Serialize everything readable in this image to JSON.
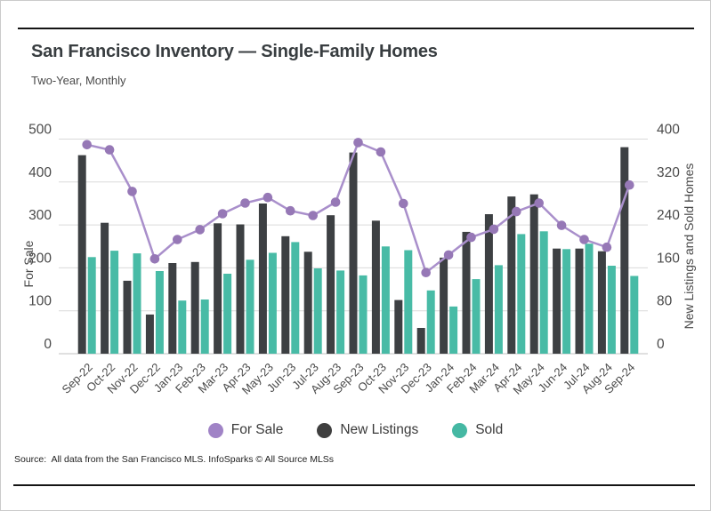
{
  "header": {
    "title": "San Francisco Inventory — Single-Family Homes",
    "subtitle": "Two-Year, Monthly"
  },
  "chart_data": {
    "type": "bar",
    "note": "combo chart: line series on left axis, grouped bars on right axis",
    "categories": [
      "Sep-22",
      "Oct-22",
      "Nov-22",
      "Dec-22",
      "Jan-23",
      "Feb-23",
      "Mar-23",
      "Apr-23",
      "May-23",
      "Jun-23",
      "Jul-23",
      "Aug-23",
      "Sep-23",
      "Oct-23",
      "Nov-23",
      "Dec-23",
      "Jan-24",
      "Feb-24",
      "Mar-24",
      "Apr-24",
      "May-24",
      "Jun-24",
      "Jul-24",
      "Aug-24",
      "Sep-24"
    ],
    "series": [
      {
        "name": "For Sale",
        "type": "line",
        "axis": "left",
        "color": "#a98fcb",
        "point_color": "#9678b6",
        "values": [
          487,
          475,
          378,
          221,
          266,
          289,
          326,
          351,
          364,
          333,
          322,
          353,
          492,
          470,
          350,
          189,
          230,
          271,
          290,
          331,
          351,
          299,
          266,
          248,
          393
        ]
      },
      {
        "name": "New Listings",
        "type": "bar",
        "axis": "right",
        "color": "#3d4043",
        "values": [
          370,
          244,
          136,
          73,
          169,
          171,
          243,
          241,
          280,
          219,
          190,
          258,
          375,
          248,
          100,
          48,
          179,
          227,
          260,
          293,
          297,
          196,
          196,
          191,
          385
        ]
      },
      {
        "name": "Sold",
        "type": "bar",
        "axis": "right",
        "color": "#48bba6",
        "values": [
          180,
          192,
          187,
          154,
          99,
          101,
          149,
          175,
          188,
          208,
          159,
          155,
          146,
          200,
          193,
          118,
          88,
          139,
          165,
          223,
          228,
          195,
          205,
          164,
          145
        ]
      }
    ],
    "left_axis": {
      "label": "For Sale",
      "min": 0,
      "max": 500,
      "step": 100
    },
    "right_axis": {
      "label": "New Listings and Sold Homes",
      "min": 0,
      "max": 400,
      "step": 80
    },
    "grid": true,
    "legend_position": "bottom"
  },
  "legend": {
    "items": [
      {
        "label": "For Sale",
        "color": "#a083c6"
      },
      {
        "label": "New Listings",
        "color": "#3f3f3f"
      },
      {
        "label": "Sold",
        "color": "#45b8a3"
      }
    ]
  },
  "footer": {
    "source": "Source:  All data from the San Francisco MLS. InfoSparks © All Source MLSs"
  }
}
